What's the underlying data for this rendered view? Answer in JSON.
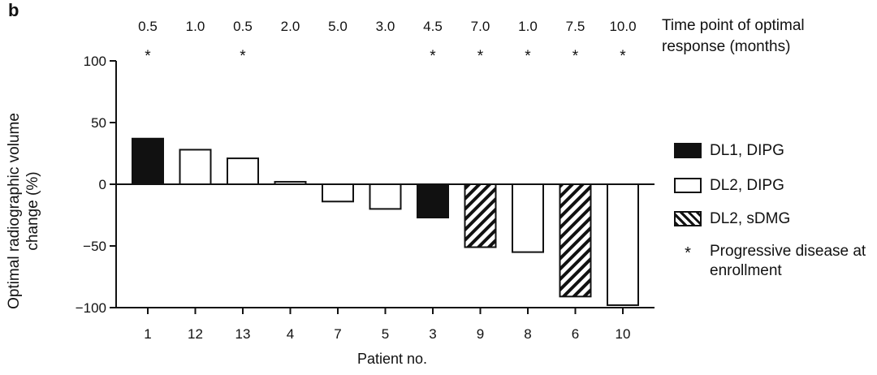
{
  "panel_label": "b",
  "timepoint_title": "Time point of optimal response (months)",
  "legend": {
    "dl1_dipg": "DL1, DIPG",
    "dl2_dipg": "DL2, DIPG",
    "dl2_sdmg": "DL2, sDMG",
    "star_symbol": "*",
    "progressive": "Progressive disease at enrollment"
  },
  "chart_data": {
    "type": "bar",
    "xlabel": "Patient no.",
    "ylabel": "Optimal radiographic volume change (%)",
    "ylim": [
      -100,
      100
    ],
    "yticks": [
      100,
      50,
      0,
      -50,
      -100
    ],
    "ytick_labels": [
      "100",
      "50",
      "0",
      "−50",
      "−100"
    ],
    "categories": [
      "1",
      "12",
      "13",
      "4",
      "7",
      "5",
      "3",
      "9",
      "8",
      "6",
      "10"
    ],
    "values": [
      37,
      28,
      21,
      2,
      -14,
      -20,
      -27,
      -51,
      -55,
      -91,
      -98
    ],
    "groups": [
      "DL1, DIPG",
      "DL2, DIPG",
      "DL2, DIPG",
      "DL2, DIPG",
      "DL2, DIPG",
      "DL2, DIPG",
      "DL1, DIPG",
      "DL2, sDMG",
      "DL2, DIPG",
      "DL2, sDMG",
      "DL2, DIPG"
    ],
    "time_point_months": [
      "0.5",
      "1.0",
      "0.5",
      "2.0",
      "5.0",
      "3.0",
      "4.5",
      "7.0",
      "1.0",
      "7.5",
      "10.0"
    ],
    "progressive_disease": [
      true,
      false,
      true,
      false,
      false,
      false,
      true,
      true,
      true,
      true,
      true
    ],
    "legend_position": "right",
    "grid": false
  }
}
